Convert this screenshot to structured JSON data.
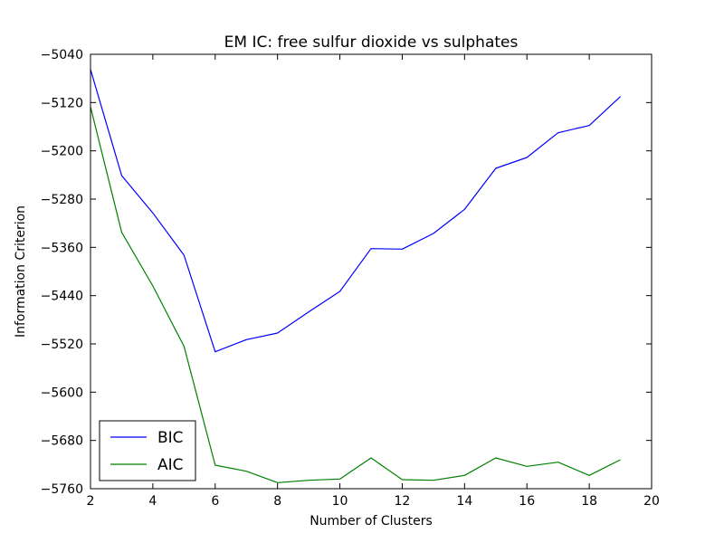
{
  "chart_data": {
    "type": "line",
    "title": "EM IC: free sulfur dioxide vs sulphates",
    "xlabel": "Number of Clusters",
    "ylabel": "Information Criterion",
    "xlim": [
      2,
      20
    ],
    "ylim": [
      -5760,
      -5040
    ],
    "xticks": [
      2,
      4,
      6,
      8,
      10,
      12,
      14,
      16,
      18,
      20
    ],
    "yticks": [
      -5040,
      -5120,
      -5200,
      -5280,
      -5360,
      -5440,
      -5520,
      -5600,
      -5680,
      -5760
    ],
    "grid": false,
    "legend_position": "bottom-left",
    "x": [
      2,
      3,
      4,
      5,
      6,
      7,
      8,
      9,
      10,
      11,
      12,
      13,
      14,
      15,
      16,
      17,
      18,
      19
    ],
    "series": [
      {
        "name": "BIC",
        "color": "#0000ff",
        "values": [
          -5065,
          -5241,
          -5303,
          -5373,
          -5533,
          -5513,
          -5502,
          -5467,
          -5433,
          -5362,
          -5363,
          -5337,
          -5297,
          -5229,
          -5211,
          -5170,
          -5158,
          -5110
        ]
      },
      {
        "name": "AIC",
        "color": "#008000",
        "values": [
          -5127,
          -5335,
          -5424,
          -5524,
          -5721,
          -5731,
          -5750,
          -5746,
          -5744,
          -5709,
          -5745,
          -5746,
          -5738,
          -5709,
          -5723,
          -5716,
          -5738,
          -5712
        ]
      }
    ]
  }
}
